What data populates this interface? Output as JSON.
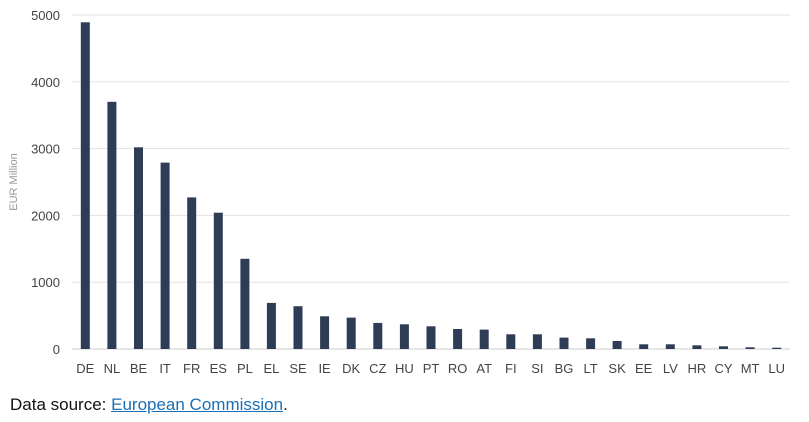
{
  "chart_data": {
    "type": "bar",
    "categories": [
      "DE",
      "NL",
      "BE",
      "IT",
      "FR",
      "ES",
      "PL",
      "EL",
      "SE",
      "IE",
      "DK",
      "CZ",
      "HU",
      "PT",
      "RO",
      "AT",
      "FI",
      "SI",
      "BG",
      "LT",
      "SK",
      "EE",
      "LV",
      "HR",
      "CY",
      "MT",
      "LU"
    ],
    "values": [
      4890,
      3700,
      3020,
      2790,
      2270,
      2040,
      1350,
      690,
      640,
      490,
      470,
      390,
      370,
      340,
      300,
      290,
      220,
      220,
      170,
      160,
      120,
      70,
      70,
      55,
      40,
      25,
      20
    ],
    "ylabel": "EUR Million",
    "yticks": [
      0,
      1000,
      2000,
      3000,
      4000,
      5000
    ],
    "ylim": [
      0,
      5000
    ],
    "grid": true,
    "bar_color": "#2e3d55"
  },
  "source": {
    "prefix": "Data source: ",
    "link_text": "European Commission",
    "suffix": "."
  }
}
